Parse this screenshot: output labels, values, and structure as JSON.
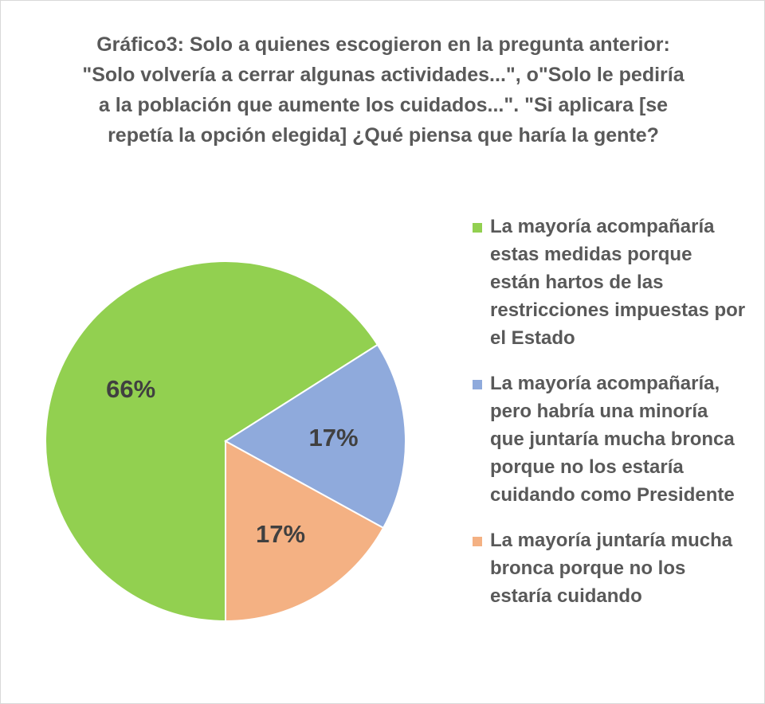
{
  "chart_data": {
    "type": "pie",
    "title_lines": [
      "Gráfico3: Solo a quienes escogieron en la pregunta anterior:",
      "\"Solo volvería a cerrar algunas actividades...\", o\"Solo le pediría",
      "a la población que aumente los cuidados...\". \"Si aplicara [se",
      "repetía la opción elegida] ¿Qué piensa que haría la gente?"
    ],
    "slices": [
      {
        "label_lines": [
          "La mayoría acompañaría",
          "estas medidas porque",
          "están hartos de las",
          "restricciones impuestas por",
          "el Estado"
        ],
        "value": 66,
        "data_label": "66%",
        "color": "#92d050"
      },
      {
        "label_lines": [
          "La mayoría acompañaría,",
          "pero habría una minoría",
          "que juntaría mucha bronca",
          "porque no los estaría",
          "cuidando como Presidente"
        ],
        "value": 17,
        "data_label": "17%",
        "color": "#8faadc"
      },
      {
        "label_lines": [
          "La mayoría juntaría mucha",
          "bronca porque no los",
          "estaría cuidando"
        ],
        "value": 17,
        "data_label": "17%",
        "color": "#f4b183"
      }
    ],
    "legend_position": "right",
    "start_angle_deg": 180,
    "direction": "clockwise"
  }
}
